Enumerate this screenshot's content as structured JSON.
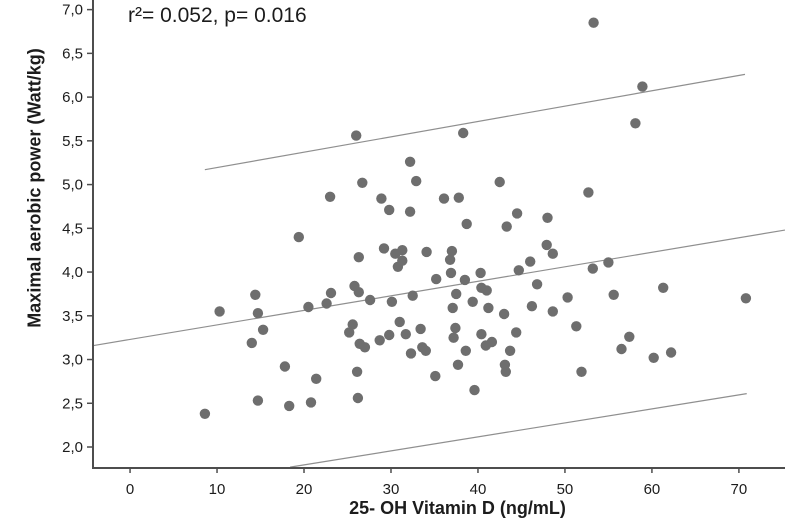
{
  "chart_data": {
    "type": "scatter",
    "annotation": "r²= 0.052, p= 0.016",
    "xlabel": "25- OH Vitamin D (ng/mL)",
    "ylabel": "Maximal aerobic power  (Watt/kg)",
    "xlim": [
      -4.26,
      75.3
    ],
    "ylim": [
      1.76,
      7.11
    ],
    "grid": false,
    "legend": "none",
    "x_ticks": [
      0,
      10,
      20,
      30,
      40,
      50,
      60,
      70
    ],
    "x_tick_labels": [
      "0",
      "10",
      "20",
      "30",
      "40",
      "50",
      "60",
      "70"
    ],
    "y_ticks": [
      2.0,
      2.5,
      3.0,
      3.5,
      4.0,
      4.5,
      5.0,
      5.5,
      6.0,
      6.5,
      7.0
    ],
    "y_tick_labels": [
      "2,0",
      "2,5",
      "3,0",
      "3,5",
      "4,0",
      "4,5",
      "5,0",
      "5,5",
      "6,0",
      "6,5",
      "7,0"
    ],
    "points": [
      [
        8.6,
        2.38
      ],
      [
        10.3,
        3.55
      ],
      [
        14.0,
        3.19
      ],
      [
        14.4,
        3.74
      ],
      [
        14.7,
        3.53
      ],
      [
        14.7,
        2.53
      ],
      [
        15.3,
        3.34
      ],
      [
        17.8,
        2.92
      ],
      [
        18.3,
        2.47
      ],
      [
        19.4,
        4.4
      ],
      [
        20.5,
        3.6
      ],
      [
        20.8,
        2.51
      ],
      [
        21.4,
        2.78
      ],
      [
        22.6,
        3.64
      ],
      [
        23.0,
        4.86
      ],
      [
        23.1,
        3.76
      ],
      [
        25.2,
        3.31
      ],
      [
        25.6,
        3.4
      ],
      [
        25.8,
        3.84
      ],
      [
        26.0,
        5.56
      ],
      [
        26.1,
        2.86
      ],
      [
        26.2,
        2.56
      ],
      [
        26.3,
        4.17
      ],
      [
        26.3,
        3.77
      ],
      [
        26.4,
        3.18
      ],
      [
        26.7,
        5.02
      ],
      [
        27.0,
        3.14
      ],
      [
        27.6,
        3.68
      ],
      [
        28.7,
        3.22
      ],
      [
        28.9,
        4.84
      ],
      [
        29.2,
        4.27
      ],
      [
        29.8,
        4.71
      ],
      [
        29.8,
        3.28
      ],
      [
        30.1,
        3.66
      ],
      [
        30.5,
        4.21
      ],
      [
        30.8,
        4.06
      ],
      [
        31.0,
        3.43
      ],
      [
        31.3,
        4.25
      ],
      [
        31.3,
        4.13
      ],
      [
        31.7,
        3.29
      ],
      [
        32.2,
        5.26
      ],
      [
        32.2,
        4.69
      ],
      [
        32.3,
        3.07
      ],
      [
        32.5,
        3.73
      ],
      [
        32.9,
        5.04
      ],
      [
        33.4,
        3.35
      ],
      [
        33.6,
        3.14
      ],
      [
        34.0,
        3.1
      ],
      [
        34.1,
        4.23
      ],
      [
        35.1,
        2.81
      ],
      [
        35.2,
        3.92
      ],
      [
        36.1,
        4.84
      ],
      [
        36.8,
        4.14
      ],
      [
        37.0,
        4.24
      ],
      [
        36.9,
        3.99
      ],
      [
        37.1,
        3.59
      ],
      [
        37.2,
        3.25
      ],
      [
        37.4,
        3.36
      ],
      [
        37.5,
        3.75
      ],
      [
        37.7,
        2.94
      ],
      [
        37.8,
        4.85
      ],
      [
        38.3,
        5.59
      ],
      [
        38.5,
        3.91
      ],
      [
        38.6,
        3.1
      ],
      [
        38.7,
        4.55
      ],
      [
        39.4,
        3.66
      ],
      [
        39.6,
        2.65
      ],
      [
        40.3,
        3.99
      ],
      [
        40.4,
        3.82
      ],
      [
        40.4,
        3.29
      ],
      [
        40.9,
        3.16
      ],
      [
        41.0,
        3.79
      ],
      [
        41.2,
        3.59
      ],
      [
        41.6,
        3.2
      ],
      [
        42.5,
        5.03
      ],
      [
        43.0,
        3.52
      ],
      [
        43.1,
        2.94
      ],
      [
        43.2,
        2.86
      ],
      [
        43.3,
        4.52
      ],
      [
        43.7,
        3.1
      ],
      [
        44.4,
        3.31
      ],
      [
        44.5,
        4.67
      ],
      [
        44.7,
        4.02
      ],
      [
        46.0,
        4.12
      ],
      [
        46.2,
        3.61
      ],
      [
        46.8,
        3.86
      ],
      [
        47.9,
        4.31
      ],
      [
        48.0,
        4.62
      ],
      [
        48.6,
        4.21
      ],
      [
        48.6,
        3.55
      ],
      [
        50.3,
        3.71
      ],
      [
        51.3,
        3.38
      ],
      [
        51.9,
        2.86
      ],
      [
        52.7,
        4.91
      ],
      [
        53.2,
        4.04
      ],
      [
        53.3,
        6.85
      ],
      [
        55.0,
        4.11
      ],
      [
        55.6,
        3.74
      ],
      [
        56.5,
        3.12
      ],
      [
        57.4,
        3.26
      ],
      [
        58.1,
        5.7
      ],
      [
        58.9,
        6.12
      ],
      [
        60.2,
        3.02
      ],
      [
        61.3,
        3.82
      ],
      [
        62.2,
        3.08
      ],
      [
        70.8,
        3.7
      ]
    ],
    "fit_lines": [
      {
        "name": "regression-line",
        "x1": -4.2,
        "y1": 3.16,
        "x2": 75.3,
        "y2": 4.48
      },
      {
        "name": "upper-interval-line",
        "x1": 8.6,
        "y1": 5.17,
        "x2": 70.7,
        "y2": 6.26
      },
      {
        "name": "lower-interval-line",
        "x1": 18.4,
        "y1": 1.77,
        "x2": 70.9,
        "y2": 2.61
      }
    ],
    "colors": {
      "point": "#6e6e6e",
      "fit_line": "#8f8f8f",
      "axis": "#4d4d4d",
      "text": "#1c1c1c",
      "background": "#ffffff"
    }
  }
}
